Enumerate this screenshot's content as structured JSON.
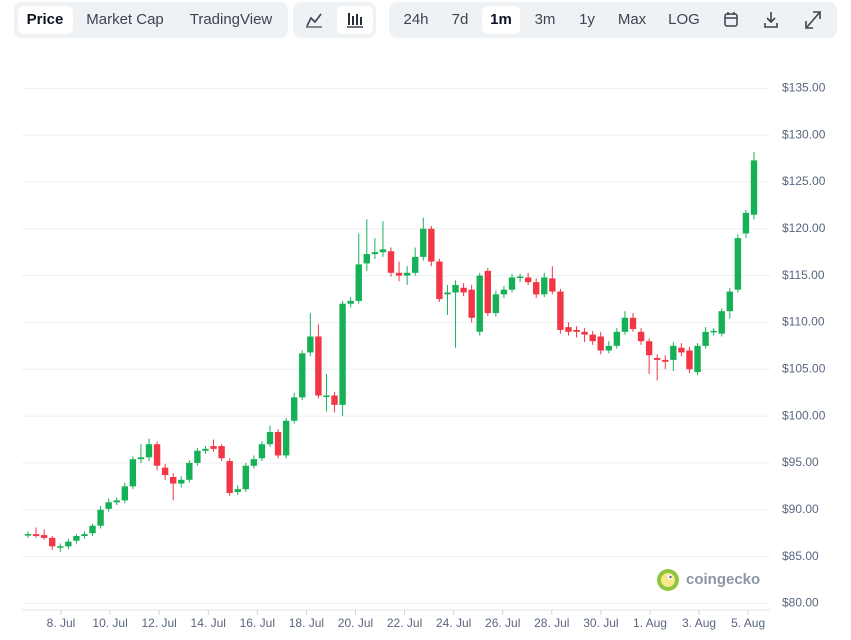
{
  "toolbar": {
    "tabs": [
      "Price",
      "Market Cap",
      "TradingView"
    ],
    "ranges": [
      "24h",
      "7d",
      "1m",
      "3m",
      "1y",
      "Max",
      "LOG"
    ]
  },
  "watermark": "coingecko",
  "chart_data": {
    "type": "candlestick",
    "up_color": "#16b157",
    "down_color": "#f23645",
    "grid": true,
    "ylim": [
      79.3,
      139.3
    ],
    "yticks": [
      {
        "value": 80,
        "label": "$80.00"
      },
      {
        "value": 85,
        "label": "$85.00"
      },
      {
        "value": 90,
        "label": "$90.00"
      },
      {
        "value": 95,
        "label": "$95.00"
      },
      {
        "value": 100,
        "label": "$100.00"
      },
      {
        "value": 105,
        "label": "$105.00"
      },
      {
        "value": 110,
        "label": "$110.00"
      },
      {
        "value": 115,
        "label": "$115.00"
      },
      {
        "value": 120,
        "label": "$120.00"
      },
      {
        "value": 125,
        "label": "$125.00"
      },
      {
        "value": 130,
        "label": "$130.00"
      },
      {
        "value": 135,
        "label": "$135.00"
      }
    ],
    "xtick_labels": [
      "8. Jul",
      "10. Jul",
      "12. Jul",
      "14. Jul",
      "16. Jul",
      "18. Jul",
      "20. Jul",
      "22. Jul",
      "24. Jul",
      "26. Jul",
      "28. Jul",
      "30. Jul",
      "1. Aug",
      "3. Aug",
      "5. Aug"
    ],
    "candles": [
      [
        87.3,
        87.7,
        87.0,
        87.4
      ],
      [
        87.4,
        88.1,
        87.0,
        87.2
      ],
      [
        87.3,
        87.9,
        86.8,
        87.0
      ],
      [
        87.0,
        87.2,
        85.7,
        86.1
      ],
      [
        86.0,
        86.4,
        85.5,
        86.1
      ],
      [
        86.1,
        86.9,
        85.8,
        86.6
      ],
      [
        86.7,
        87.4,
        86.4,
        87.2
      ],
      [
        87.2,
        87.7,
        86.9,
        87.4
      ],
      [
        87.5,
        88.5,
        87.2,
        88.3
      ],
      [
        88.3,
        90.4,
        88.0,
        90.0
      ],
      [
        90.1,
        91.2,
        89.8,
        90.8
      ],
      [
        90.8,
        91.3,
        90.5,
        91.0
      ],
      [
        91.0,
        92.9,
        90.7,
        92.5
      ],
      [
        92.5,
        95.7,
        92.2,
        95.4
      ],
      [
        95.4,
        97.0,
        95.0,
        95.6
      ],
      [
        95.6,
        97.6,
        95.2,
        97.0
      ],
      [
        97.0,
        97.3,
        94.2,
        94.7
      ],
      [
        94.5,
        94.9,
        93.2,
        93.7
      ],
      [
        93.5,
        93.9,
        91.0,
        92.8
      ],
      [
        92.8,
        93.6,
        92.4,
        93.2
      ],
      [
        93.2,
        95.3,
        92.9,
        95.0
      ],
      [
        95.0,
        96.6,
        94.7,
        96.3
      ],
      [
        96.3,
        96.8,
        96.0,
        96.5
      ],
      [
        96.8,
        97.5,
        96.2,
        96.5
      ],
      [
        96.8,
        97.0,
        95.2,
        95.5
      ],
      [
        95.2,
        95.5,
        91.5,
        91.8
      ],
      [
        91.9,
        92.6,
        91.6,
        92.2
      ],
      [
        92.2,
        95.0,
        91.9,
        94.7
      ],
      [
        94.7,
        95.8,
        94.4,
        95.4
      ],
      [
        95.5,
        97.3,
        95.2,
        97.0
      ],
      [
        97.0,
        99.0,
        96.7,
        98.3
      ],
      [
        98.3,
        98.6,
        95.5,
        95.8
      ],
      [
        95.8,
        99.8,
        95.5,
        99.5
      ],
      [
        99.5,
        102.5,
        99.2,
        102.0
      ],
      [
        102.0,
        107.0,
        101.7,
        106.7
      ],
      [
        106.8,
        111.0,
        106.4,
        108.5
      ],
      [
        108.5,
        109.8,
        101.9,
        102.2
      ],
      [
        102.2,
        104.5,
        100.5,
        102.2
      ],
      [
        102.2,
        102.6,
        100.4,
        101.2
      ],
      [
        101.2,
        112.3,
        100.0,
        112.0
      ],
      [
        112.0,
        112.7,
        111.6,
        112.3
      ],
      [
        112.3,
        119.5,
        112.0,
        116.2
      ],
      [
        116.3,
        121.0,
        115.5,
        117.3
      ],
      [
        117.3,
        119.0,
        116.8,
        117.5
      ],
      [
        117.5,
        120.8,
        117.0,
        117.8
      ],
      [
        117.6,
        118.0,
        114.9,
        115.3
      ],
      [
        115.3,
        116.5,
        114.4,
        115.0
      ],
      [
        115.0,
        116.0,
        114.0,
        115.3
      ],
      [
        115.3,
        118.0,
        115.0,
        117.0
      ],
      [
        117.0,
        121.2,
        116.6,
        120.0
      ],
      [
        120.0,
        120.3,
        116.0,
        116.5
      ],
      [
        116.5,
        116.8,
        112.2,
        112.5
      ],
      [
        113.0,
        114.0,
        110.8,
        113.2
      ],
      [
        113.2,
        114.5,
        107.3,
        114.0
      ],
      [
        113.7,
        114.2,
        112.8,
        113.2
      ],
      [
        113.5,
        114.0,
        110.0,
        110.5
      ],
      [
        109.0,
        115.3,
        108.6,
        115.0
      ],
      [
        115.5,
        115.8,
        110.7,
        111.0
      ],
      [
        111.0,
        113.4,
        110.6,
        113.0
      ],
      [
        113.0,
        113.9,
        112.6,
        113.5
      ],
      [
        113.5,
        115.2,
        113.2,
        114.8
      ],
      [
        114.8,
        115.2,
        114.3,
        114.9
      ],
      [
        114.8,
        115.3,
        114.0,
        114.3
      ],
      [
        114.3,
        114.7,
        112.6,
        113.0
      ],
      [
        113.0,
        115.3,
        112.7,
        114.8
      ],
      [
        114.7,
        116.0,
        113.0,
        113.3
      ],
      [
        113.3,
        113.6,
        108.8,
        109.2
      ],
      [
        109.5,
        110.0,
        108.6,
        109.0
      ],
      [
        109.2,
        109.6,
        108.4,
        109.0
      ],
      [
        109.0,
        109.4,
        107.9,
        108.7
      ],
      [
        108.7,
        109.1,
        107.6,
        108.0
      ],
      [
        108.5,
        109.0,
        106.6,
        107.0
      ],
      [
        107.0,
        108.0,
        106.7,
        107.5
      ],
      [
        107.5,
        109.4,
        107.2,
        109.0
      ],
      [
        109.0,
        111.2,
        108.7,
        110.5
      ],
      [
        110.5,
        111.0,
        109.0,
        109.3
      ],
      [
        109.0,
        109.4,
        107.6,
        108.0
      ],
      [
        108.0,
        108.3,
        104.5,
        106.5
      ],
      [
        106.2,
        106.6,
        103.8,
        106.0
      ],
      [
        106.0,
        106.5,
        105.0,
        105.8
      ],
      [
        106.0,
        107.9,
        104.8,
        107.5
      ],
      [
        107.3,
        107.8,
        106.4,
        106.8
      ],
      [
        107.0,
        107.4,
        104.6,
        105.0
      ],
      [
        104.7,
        107.8,
        104.4,
        107.5
      ],
      [
        107.5,
        109.5,
        107.2,
        109.0
      ],
      [
        109.0,
        109.4,
        108.6,
        109.1
      ],
      [
        108.8,
        111.5,
        108.5,
        111.2
      ],
      [
        111.2,
        113.7,
        110.4,
        113.3
      ],
      [
        113.5,
        119.4,
        113.2,
        119.0
      ],
      [
        119.5,
        122.0,
        119.0,
        121.7
      ],
      [
        121.5,
        128.2,
        121.0,
        127.3
      ]
    ]
  }
}
